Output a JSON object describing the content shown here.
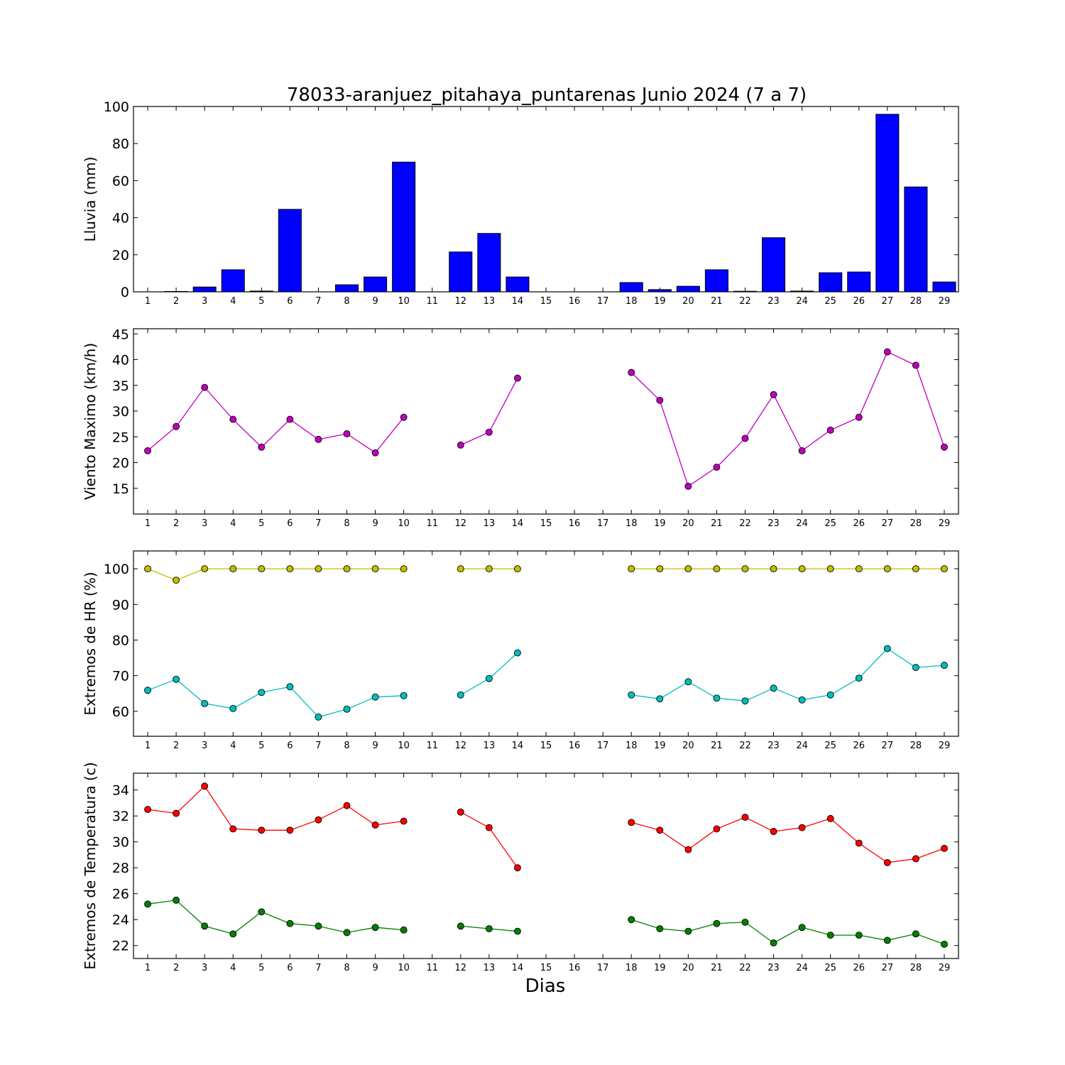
{
  "figure": {
    "title": "78033-aranjuez_pitahaya_puntarenas Junio 2024  (7 a 7)",
    "xlabel": "Dias"
  },
  "chart_data": [
    {
      "type": "bar",
      "ylabel": "Lluvia (mm)",
      "ylim": [
        0,
        100
      ],
      "yticks": [
        0,
        20,
        40,
        60,
        80,
        100
      ],
      "xticks": [
        1,
        2,
        3,
        4,
        5,
        6,
        7,
        8,
        9,
        10,
        11,
        12,
        13,
        14,
        15,
        16,
        17,
        18,
        19,
        20,
        21,
        22,
        23,
        24,
        25,
        26,
        27,
        28,
        29
      ],
      "x": [
        1,
        2,
        3,
        4,
        5,
        6,
        7,
        8,
        9,
        10,
        11,
        12,
        13,
        14,
        15,
        16,
        17,
        18,
        19,
        20,
        21,
        22,
        23,
        24,
        25,
        26,
        27,
        28,
        29
      ],
      "series": [
        {
          "color": "#0000ff",
          "values": [
            0,
            0.2,
            2.6,
            11.9,
            0.4,
            44.5,
            0,
            3.8,
            8.0,
            70.0,
            0,
            21.5,
            31.5,
            8.0,
            0,
            0,
            0,
            5.0,
            1.2,
            3.0,
            11.9,
            0.3,
            29.2,
            0.4,
            10.3,
            10.7,
            95.8,
            56.6,
            5.3
          ]
        }
      ]
    },
    {
      "type": "line",
      "ylabel": "Viento Maximo (km/h)",
      "ylim": [
        10,
        46
      ],
      "yticks": [
        15,
        20,
        25,
        30,
        35,
        40,
        45
      ],
      "xticks": [
        1,
        2,
        3,
        4,
        5,
        6,
        7,
        8,
        9,
        10,
        11,
        12,
        13,
        14,
        15,
        16,
        17,
        18,
        19,
        20,
        21,
        22,
        23,
        24,
        25,
        26,
        27,
        28,
        29
      ],
      "x": [
        1,
        2,
        3,
        4,
        5,
        6,
        7,
        8,
        9,
        10,
        11,
        12,
        13,
        14,
        15,
        16,
        17,
        18,
        19,
        20,
        21,
        22,
        23,
        24,
        25,
        26,
        27,
        28,
        29
      ],
      "series": [
        {
          "color": "#bf00bf",
          "values": [
            22.3,
            27.0,
            34.6,
            28.4,
            23.0,
            28.4,
            24.5,
            25.6,
            21.9,
            28.8,
            null,
            23.4,
            25.9,
            36.4,
            null,
            null,
            null,
            37.5,
            32.1,
            15.4,
            19.1,
            24.7,
            33.2,
            22.3,
            26.3,
            28.8,
            41.5,
            38.9,
            23.0
          ]
        }
      ]
    },
    {
      "type": "line",
      "ylabel": "Extremos de HR (%)",
      "ylim": [
        53,
        105
      ],
      "yticks": [
        60,
        70,
        80,
        90,
        100
      ],
      "xticks": [
        1,
        2,
        3,
        4,
        5,
        6,
        7,
        8,
        9,
        10,
        11,
        12,
        13,
        14,
        15,
        16,
        17,
        18,
        19,
        20,
        21,
        22,
        23,
        24,
        25,
        26,
        27,
        28,
        29
      ],
      "x": [
        1,
        2,
        3,
        4,
        5,
        6,
        7,
        8,
        9,
        10,
        11,
        12,
        13,
        14,
        15,
        16,
        17,
        18,
        19,
        20,
        21,
        22,
        23,
        24,
        25,
        26,
        27,
        28,
        29
      ],
      "series": [
        {
          "color": "#bfbf00",
          "values": [
            100,
            96.8,
            100,
            100,
            100,
            100,
            100,
            100,
            100,
            100,
            null,
            100,
            100,
            100,
            null,
            null,
            null,
            100,
            100,
            100,
            100,
            100,
            100,
            100,
            100,
            100,
            100,
            100,
            100
          ]
        },
        {
          "color": "#00bfbf",
          "values": [
            65.9,
            69.0,
            62.2,
            60.8,
            65.3,
            66.9,
            58.4,
            60.6,
            64.0,
            64.4,
            null,
            64.6,
            69.2,
            76.4,
            null,
            null,
            null,
            64.6,
            63.5,
            68.3,
            63.7,
            62.9,
            66.5,
            63.2,
            64.6,
            69.3,
            77.6,
            72.3,
            72.9
          ]
        }
      ]
    },
    {
      "type": "line",
      "ylabel": "Extremos de Temperatura (c)",
      "ylim": [
        21,
        35.3
      ],
      "yticks": [
        22,
        24,
        26,
        28,
        30,
        32,
        34
      ],
      "xticks": [
        1,
        2,
        3,
        4,
        5,
        6,
        7,
        8,
        9,
        10,
        11,
        12,
        13,
        14,
        15,
        16,
        17,
        18,
        19,
        20,
        21,
        22,
        23,
        24,
        25,
        26,
        27,
        28,
        29
      ],
      "x": [
        1,
        2,
        3,
        4,
        5,
        6,
        7,
        8,
        9,
        10,
        11,
        12,
        13,
        14,
        15,
        16,
        17,
        18,
        19,
        20,
        21,
        22,
        23,
        24,
        25,
        26,
        27,
        28,
        29
      ],
      "series": [
        {
          "color": "#ff0000",
          "values": [
            32.5,
            32.2,
            34.3,
            31.0,
            30.9,
            30.9,
            31.7,
            32.8,
            31.3,
            31.6,
            null,
            32.3,
            31.1,
            28.0,
            null,
            null,
            null,
            31.5,
            30.9,
            29.4,
            31.0,
            31.9,
            30.8,
            31.1,
            31.8,
            29.9,
            28.4,
            28.7,
            29.5
          ]
        },
        {
          "color": "#008000",
          "values": [
            25.2,
            25.5,
            23.5,
            22.9,
            24.6,
            23.7,
            23.5,
            23.0,
            23.4,
            23.2,
            null,
            23.5,
            23.3,
            23.1,
            null,
            null,
            null,
            24.0,
            23.3,
            23.1,
            23.7,
            23.8,
            22.2,
            23.4,
            22.8,
            22.8,
            22.4,
            22.9,
            22.1
          ]
        }
      ]
    }
  ]
}
